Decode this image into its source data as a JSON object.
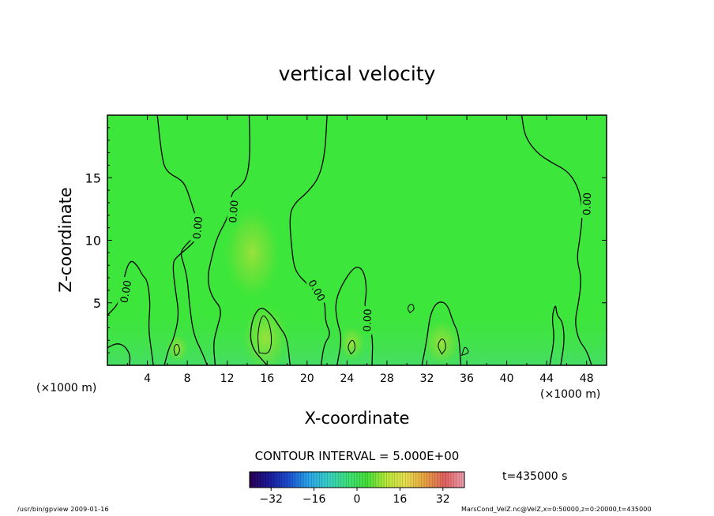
{
  "chart_data": {
    "type": "heatmap",
    "title": "vertical velocity",
    "xlabel": "X-coordinate",
    "ylabel": "Z-coordinate",
    "x_unit_left": "(×1000 m)",
    "x_unit_right": "(×1000 m)",
    "xlim": [
      0,
      50
    ],
    "ylim": [
      0,
      20
    ],
    "x_ticks": [
      4,
      8,
      12,
      16,
      20,
      24,
      28,
      32,
      36,
      40,
      44,
      48
    ],
    "y_ticks": [
      5,
      10,
      15
    ],
    "contour_interval_label": "CONTOUR INTERVAL = 5.000E+00",
    "time_label": "t=435000 s",
    "colorbar": {
      "range": [
        -40,
        40
      ],
      "ticks": [
        -32,
        -16,
        0,
        16,
        32
      ],
      "colors": [
        "#2a0050",
        "#1a1a9a",
        "#1b4fd0",
        "#2aa3e8",
        "#37d0c8",
        "#3de07a",
        "#44e03a",
        "#b7e83a",
        "#e8e050",
        "#e8a040",
        "#e06060",
        "#f0a0b0"
      ]
    },
    "background_color": "#3de63a",
    "contour_labels": [
      {
        "text": "0.00",
        "x": 1.8,
        "z": 5.9,
        "rotate": -80
      },
      {
        "text": "0.00",
        "x": 9.0,
        "z": 11.0,
        "rotate": -85
      },
      {
        "text": "0.00",
        "x": 12.6,
        "z": 12.3,
        "rotate": -85
      },
      {
        "text": "0.00",
        "x": 21.0,
        "z": 6.0,
        "rotate": 60
      },
      {
        "text": "0.00",
        "x": 26.0,
        "z": 3.6,
        "rotate": -88
      },
      {
        "text": "0.00",
        "x": 48.0,
        "z": 12.9,
        "rotate": -88
      }
    ],
    "contours": [
      [
        [
          0,
          4
        ],
        [
          1.2,
          5
        ],
        [
          1.5,
          6.5
        ],
        [
          2.2,
          8.5
        ],
        [
          3.0,
          8.0
        ],
        [
          3.5,
          7.2
        ],
        [
          4.0,
          6.8
        ],
        [
          4.3,
          5.0
        ],
        [
          4.1,
          3.0
        ],
        [
          4.4,
          1.2
        ],
        [
          4.6,
          0
        ]
      ],
      [
        [
          0,
          1.4
        ],
        [
          1.0,
          1.8
        ],
        [
          1.8,
          1.5
        ],
        [
          2.3,
          0.8
        ],
        [
          2.2,
          0
        ]
      ],
      [
        [
          5.0,
          20
        ],
        [
          5.4,
          17
        ],
        [
          5.8,
          15.5
        ],
        [
          7.5,
          14.8
        ],
        [
          8.0,
          14.0
        ],
        [
          8.4,
          13.0
        ],
        [
          9.0,
          11.5
        ],
        [
          9.3,
          10.5
        ],
        [
          8.8,
          10.0
        ],
        [
          8.2,
          9.5
        ],
        [
          7.0,
          8.7
        ],
        [
          6.5,
          8.2
        ],
        [
          6.8,
          6.0
        ],
        [
          7.2,
          4.0
        ],
        [
          6.6,
          2.0
        ],
        [
          6.2,
          1.5
        ],
        [
          5.7,
          0
        ]
      ],
      [
        [
          9.0,
          10.5
        ],
        [
          7.8,
          9.6
        ],
        [
          7.3,
          9.0
        ],
        [
          7.6,
          8.2
        ],
        [
          8.0,
          7.0
        ],
        [
          8.2,
          5.0
        ],
        [
          8.6,
          2.5
        ],
        [
          9.5,
          1.0
        ],
        [
          10.0,
          0
        ]
      ],
      [
        [
          14.2,
          20
        ],
        [
          14.3,
          17
        ],
        [
          14.0,
          15.0
        ],
        [
          13.2,
          14.2
        ],
        [
          12.4,
          13.8
        ],
        [
          12.2,
          12.0
        ],
        [
          11.0,
          10.3
        ],
        [
          10.4,
          8.5
        ],
        [
          10.0,
          7.0
        ],
        [
          10.4,
          5.5
        ],
        [
          11.5,
          4.5
        ],
        [
          11.0,
          3.0
        ],
        [
          10.6,
          1.8
        ],
        [
          10.8,
          0
        ]
      ],
      [
        [
          22.0,
          20
        ],
        [
          21.8,
          17
        ],
        [
          21.2,
          15.0
        ],
        [
          20.0,
          13.8
        ],
        [
          18.8,
          13.0
        ],
        [
          18.2,
          12.0
        ],
        [
          18.5,
          9.0
        ],
        [
          18.8,
          7.5
        ],
        [
          20.0,
          6.5
        ],
        [
          21.8,
          5.4
        ],
        [
          21.8,
          3.5
        ],
        [
          22.4,
          2.5
        ],
        [
          21.7,
          1.7
        ],
        [
          21.4,
          0
        ]
      ],
      [
        [
          23.0,
          0
        ],
        [
          23.5,
          2.2
        ],
        [
          23.0,
          3.5
        ],
        [
          22.8,
          5.0
        ],
        [
          23.5,
          6.5
        ],
        [
          24.8,
          8.0
        ],
        [
          25.7,
          7.6
        ],
        [
          26.0,
          6.0
        ],
        [
          25.7,
          4.5
        ],
        [
          26.6,
          2.5
        ],
        [
          26.5,
          0
        ]
      ],
      [
        [
          16.0,
          0
        ],
        [
          14.3,
          1.5
        ],
        [
          14.4,
          3.5
        ],
        [
          15.3,
          4.8
        ],
        [
          16.5,
          4.0
        ],
        [
          17.3,
          3.0
        ],
        [
          18.0,
          2.2
        ],
        [
          18.3,
          0
        ]
      ],
      [
        [
          31.5,
          0
        ],
        [
          32.0,
          2.0
        ],
        [
          32.3,
          4.0
        ],
        [
          33.0,
          5.1
        ],
        [
          34.0,
          5.0
        ],
        [
          34.6,
          3.5
        ],
        [
          35.2,
          2.5
        ],
        [
          35.4,
          0
        ]
      ],
      [
        [
          41.5,
          20
        ],
        [
          41.8,
          18.3
        ],
        [
          43.0,
          17.0
        ],
        [
          44.5,
          16.2
        ],
        [
          46.2,
          15.5
        ],
        [
          47.3,
          14.0
        ],
        [
          47.6,
          12.0
        ],
        [
          47.3,
          10.0
        ],
        [
          47.0,
          8.5
        ],
        [
          47.5,
          7.0
        ],
        [
          47.2,
          5.0
        ],
        [
          46.8,
          3.5
        ],
        [
          47.2,
          2.0
        ],
        [
          48.0,
          1.2
        ],
        [
          48.5,
          0
        ]
      ],
      [
        [
          44.3,
          0
        ],
        [
          44.8,
          2.2
        ],
        [
          44.5,
          3.8
        ],
        [
          44.9,
          5.0
        ],
        [
          45.0,
          4.0
        ],
        [
          45.6,
          3.5
        ],
        [
          45.8,
          2.0
        ],
        [
          45.4,
          0
        ]
      ]
    ],
    "inner_contours": [
      [
        [
          15.2,
          1.0
        ],
        [
          15.0,
          2.5
        ],
        [
          15.5,
          4.2
        ],
        [
          16.2,
          3.5
        ],
        [
          16.5,
          2.0
        ],
        [
          16.2,
          0.9
        ]
      ],
      [
        [
          6.8,
          0.8
        ],
        [
          6.6,
          1.4
        ],
        [
          7.0,
          1.8
        ],
        [
          7.3,
          1.2
        ],
        [
          7.0,
          0.8
        ]
      ],
      [
        [
          24.4,
          0.9
        ],
        [
          24.0,
          1.5
        ],
        [
          24.6,
          2.2
        ],
        [
          24.9,
          1.3
        ]
      ],
      [
        [
          33.5,
          0.9
        ],
        [
          33.0,
          1.6
        ],
        [
          33.6,
          2.3
        ],
        [
          34.0,
          1.4
        ]
      ],
      [
        [
          30.3,
          4.2
        ],
        [
          30.0,
          4.6
        ],
        [
          30.5,
          5.0
        ],
        [
          30.8,
          4.5
        ]
      ],
      [
        [
          35.5,
          0.8
        ],
        [
          35.8,
          1.6
        ],
        [
          36.3,
          1.0
        ]
      ]
    ],
    "warm_spots": [
      {
        "x": 15.8,
        "z": 2.2,
        "rx": 2.5,
        "rz": 3.0
      },
      {
        "x": 33.5,
        "z": 1.8,
        "rx": 2.0,
        "rz": 2.0
      },
      {
        "x": 24.5,
        "z": 1.8,
        "rx": 1.4,
        "rz": 1.5
      },
      {
        "x": 7.0,
        "z": 1.4,
        "rx": 1.2,
        "rz": 1.2
      },
      {
        "x": 14.5,
        "z": 9.0,
        "rx": 3.0,
        "rz": 4.0
      }
    ]
  },
  "footer": {
    "left": "/usr/bin/gpview   2009-01-16",
    "right": "MarsCond_VelZ.nc@VelZ,x=0:50000,z=0:20000,t=435000"
  }
}
